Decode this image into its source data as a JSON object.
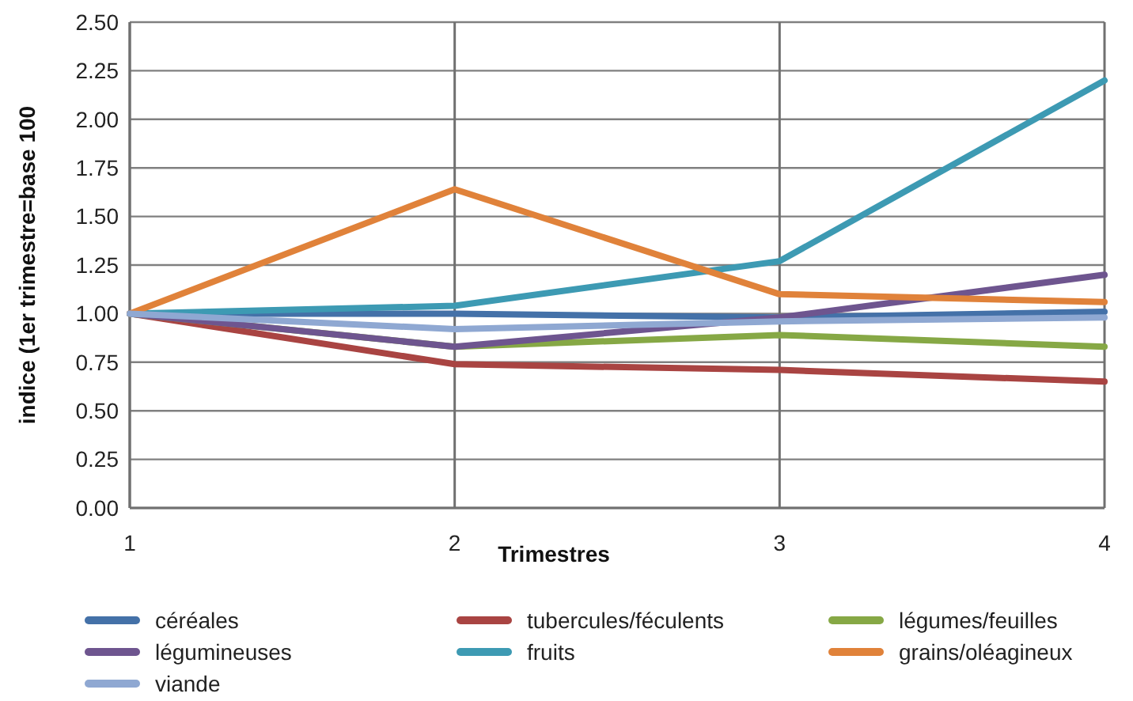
{
  "chart_data": {
    "type": "line",
    "xlabel": "Trimestres",
    "ylabel": "indice (1er trimestre=base 100",
    "x": [
      1,
      2,
      3,
      4
    ],
    "xlim": [
      1,
      4
    ],
    "xticks": [
      1,
      2,
      3,
      4
    ],
    "ylim": [
      0,
      2.5
    ],
    "yticks": [
      {
        "value": 0,
        "label": "0.00"
      },
      {
        "value": 0.25,
        "label": "0.25"
      },
      {
        "value": 0.5,
        "label": "0.50"
      },
      {
        "value": 0.75,
        "label": "0.75"
      },
      {
        "value": 1,
        "label": "1.00"
      },
      {
        "value": 1.25,
        "label": "1.25"
      },
      {
        "value": 1.5,
        "label": "1.50"
      },
      {
        "value": 1.75,
        "label": "1.75"
      },
      {
        "value": 2,
        "label": "2.00"
      },
      {
        "value": 2.25,
        "label": "2.25"
      },
      {
        "value": 2.5,
        "label": "2.50"
      }
    ],
    "grid": true,
    "legend": "bottom",
    "marker": "none",
    "line_style": "solid",
    "series": [
      {
        "name": "céréales",
        "color": "#4471a8",
        "values": [
          1,
          1.0,
          0.98,
          1.01
        ]
      },
      {
        "name": "tubercules/féculents",
        "color": "#a94442",
        "values": [
          1,
          0.74,
          0.71,
          0.65
        ]
      },
      {
        "name": "légumes/feuilles",
        "color": "#86a845",
        "values": [
          1,
          0.83,
          0.89,
          0.83
        ]
      },
      {
        "name": "légumineuses",
        "color": "#6e558f",
        "values": [
          1,
          0.83,
          0.98,
          1.2
        ]
      },
      {
        "name": "fruits",
        "color": "#3d9ab3",
        "values": [
          1,
          1.04,
          1.27,
          2.2
        ]
      },
      {
        "name": "grains/oléagineux",
        "color": "#e0823a",
        "values": [
          1,
          1.64,
          1.1,
          1.06
        ]
      },
      {
        "name": "viande",
        "color": "#8fa8d2",
        "values": [
          1,
          0.92,
          0.96,
          0.98
        ]
      }
    ]
  }
}
